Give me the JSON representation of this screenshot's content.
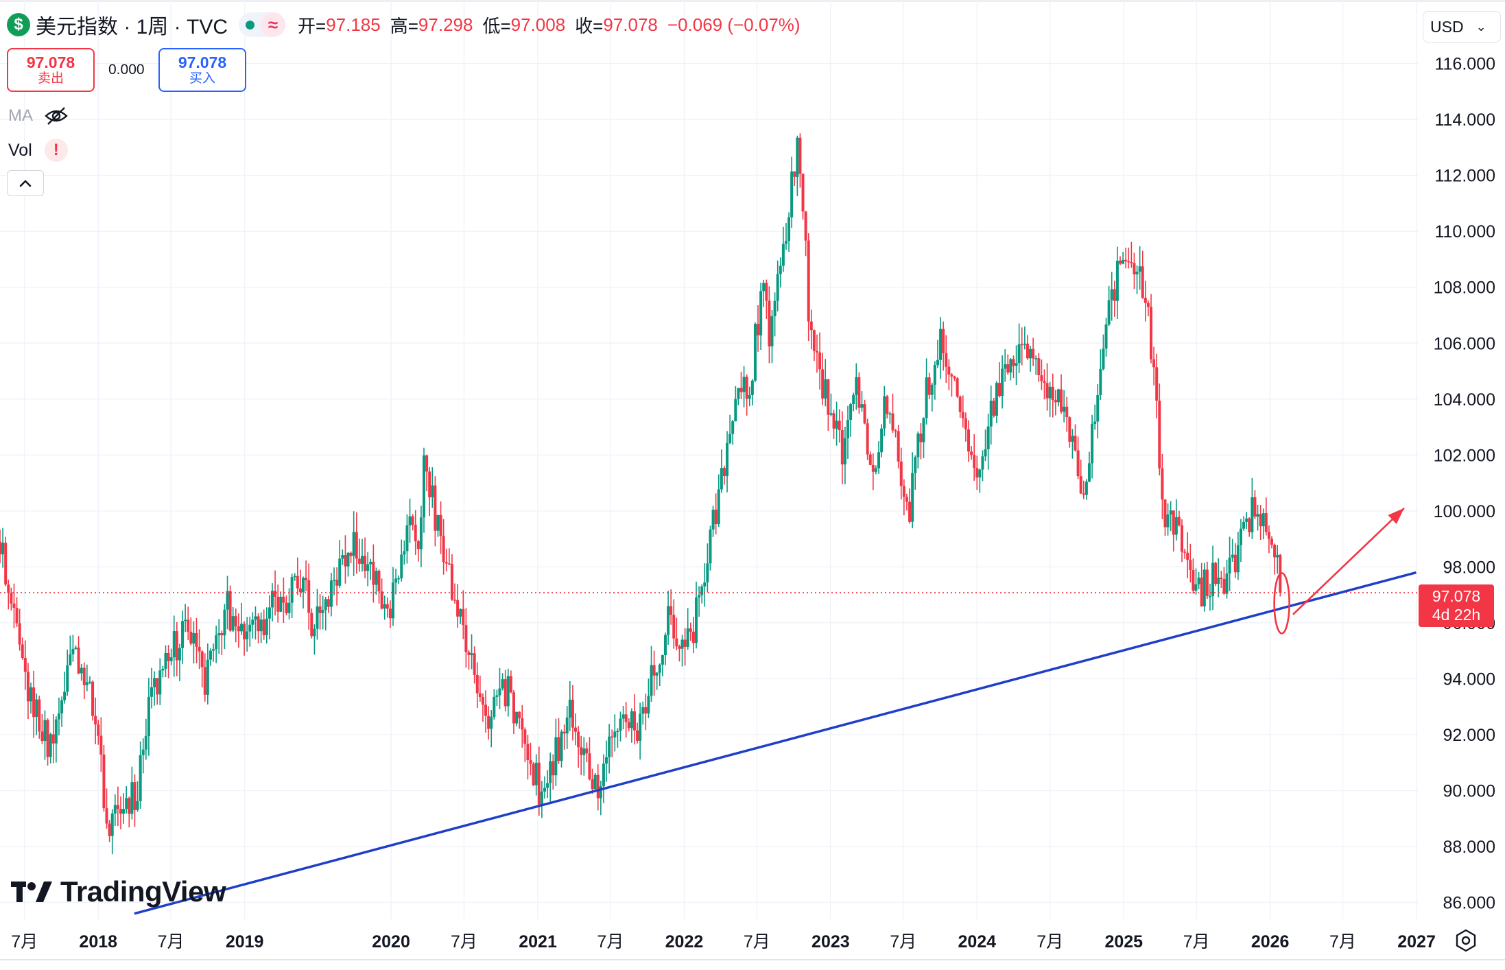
{
  "header": {
    "symbol_icon": "dollar-icon",
    "title": "美元指数 · 1周 · TVC",
    "approx_symbol": "≈",
    "ohlc": {
      "open_label": "开=",
      "open": "97.185",
      "high_label": "高=",
      "high": "97.298",
      "low_label": "低=",
      "low": "97.008",
      "close_label": "收=",
      "close": "97.078",
      "change": "−0.069 (−0.07%)"
    }
  },
  "trade": {
    "sell_price": "97.078",
    "sell_label": "卖出",
    "spread": "0.000",
    "buy_price": "97.078",
    "buy_label": "买入"
  },
  "indicators": {
    "ma_label": "MA",
    "vol_label": "Vol",
    "vol_warning": "!"
  },
  "currency": {
    "label": "USD"
  },
  "price_badge": {
    "price": "97.078",
    "countdown": "4d 22h"
  },
  "logo": {
    "text": "TradingView"
  },
  "colors": {
    "up": "#089981",
    "down": "#f23645",
    "trendline": "#1e3fc8",
    "annotation": "#f23645",
    "grid": "#f0f3fa",
    "axis_text": "#131722"
  },
  "chart_data": {
    "type": "candlestick",
    "title": "",
    "series_name": "",
    "last_price": 97.078,
    "price_line": 97.078,
    "ylim": [
      85.4,
      116.8
    ],
    "xlim": [
      "2017-05-01",
      "2027-01-06"
    ],
    "y_ticks": [
      "116.000",
      "114.000",
      "112.000",
      "110.000",
      "108.000",
      "106.000",
      "104.000",
      "102.000",
      "100.000",
      "98.000",
      "96.000",
      "94.000",
      "92.000",
      "90.000",
      "88.000",
      "86.000"
    ],
    "x_ticks": [
      {
        "label": "7月",
        "date": "2017-07-01",
        "bold": false
      },
      {
        "label": "2018",
        "date": "2018-01-01",
        "bold": true
      },
      {
        "label": "7月",
        "date": "2018-07-01",
        "bold": false
      },
      {
        "label": "2019",
        "date": "2019-01-01",
        "bold": true
      },
      {
        "label": "2020",
        "date": "2020-01-01",
        "bold": true
      },
      {
        "label": "7月",
        "date": "2020-07-01",
        "bold": false
      },
      {
        "label": "2021",
        "date": "2021-01-01",
        "bold": true
      },
      {
        "label": "7月",
        "date": "2021-07-01",
        "bold": false
      },
      {
        "label": "2022",
        "date": "2022-01-01",
        "bold": true
      },
      {
        "label": "7月",
        "date": "2022-07-01",
        "bold": false
      },
      {
        "label": "2023",
        "date": "2023-01-01",
        "bold": true
      },
      {
        "label": "7月",
        "date": "2023-07-01",
        "bold": false
      },
      {
        "label": "2024",
        "date": "2024-01-01",
        "bold": true
      },
      {
        "label": "7月",
        "date": "2024-07-01",
        "bold": false
      },
      {
        "label": "2025",
        "date": "2025-01-01",
        "bold": true
      },
      {
        "label": "7月",
        "date": "2025-07-01",
        "bold": false
      },
      {
        "label": "2026",
        "date": "2026-01-01",
        "bold": true
      },
      {
        "label": "7月",
        "date": "2026-07-01",
        "bold": false
      },
      {
        "label": "2027",
        "date": "2027-01-01",
        "bold": true
      }
    ],
    "path_key_points": [
      [
        "2017-05-01",
        98.9
      ],
      [
        "2017-06-01",
        96.8
      ],
      [
        "2017-07-01",
        94.2
      ],
      [
        "2017-09-08",
        91.4
      ],
      [
        "2017-10-25",
        95.1
      ],
      [
        "2017-12-15",
        93.5
      ],
      [
        "2018-01-26",
        88.6
      ],
      [
        "2018-02-23",
        89.6
      ],
      [
        "2018-04-06",
        89.8
      ],
      [
        "2018-05-18",
        93.8
      ],
      [
        "2018-08-17",
        96.1
      ],
      [
        "2018-09-21",
        93.8
      ],
      [
        "2018-11-16",
        96.6
      ],
      [
        "2019-01-11",
        95.3
      ],
      [
        "2019-03-01",
        96.4
      ],
      [
        "2019-05-31",
        97.6
      ],
      [
        "2019-06-21",
        95.8
      ],
      [
        "2019-09-27",
        98.9
      ],
      [
        "2019-12-27",
        96.6
      ],
      [
        "2020-02-21",
        99.8
      ],
      [
        "2020-03-13",
        98.7
      ],
      [
        "2020-03-20",
        102.5
      ],
      [
        "2020-05-01",
        99.0
      ],
      [
        "2020-06-12",
        96.7
      ],
      [
        "2020-07-24",
        94.2
      ],
      [
        "2020-09-04",
        92.5
      ],
      [
        "2020-10-16",
        93.7
      ],
      [
        "2021-01-08",
        89.9
      ],
      [
        "2021-03-26",
        92.8
      ],
      [
        "2021-05-28",
        90.0
      ],
      [
        "2021-07-02",
        92.2
      ],
      [
        "2021-09-03",
        92.2
      ],
      [
        "2021-11-19",
        96.0
      ],
      [
        "2022-01-14",
        95.2
      ],
      [
        "2022-03-04",
        98.6
      ],
      [
        "2022-05-13",
        104.5
      ],
      [
        "2022-06-10",
        104.2
      ],
      [
        "2022-07-15",
        108.0
      ],
      [
        "2022-08-05",
        106.1
      ],
      [
        "2022-09-30",
        112.1
      ],
      [
        "2022-10-14",
        113.3
      ],
      [
        "2022-11-11",
        106.3
      ],
      [
        "2022-12-30",
        103.5
      ],
      [
        "2023-02-03",
        101.9
      ],
      [
        "2023-03-03",
        104.5
      ],
      [
        "2023-04-14",
        101.5
      ],
      [
        "2023-05-26",
        104.2
      ],
      [
        "2023-07-14",
        99.9
      ],
      [
        "2023-08-25",
        104.1
      ],
      [
        "2023-10-06",
        106.1
      ],
      [
        "2023-11-24",
        103.4
      ],
      [
        "2023-12-29",
        101.3
      ],
      [
        "2024-02-16",
        104.3
      ],
      [
        "2024-04-19",
        106.1
      ],
      [
        "2024-06-07",
        104.8
      ],
      [
        "2024-07-19",
        104.3
      ],
      [
        "2024-09-27",
        100.4
      ],
      [
        "2024-11-15",
        106.7
      ],
      [
        "2025-01-10",
        109.6
      ],
      [
        "2025-02-28",
        107.6
      ],
      [
        "2025-04-11",
        100.1
      ],
      [
        "2025-05-23",
        99.2
      ],
      [
        "2025-07-04",
        97.0
      ],
      [
        "2025-08-15",
        97.8
      ],
      [
        "2025-09-19",
        97.6
      ],
      [
        "2025-11-21",
        100.2
      ],
      [
        "2026-01-09",
        99.1
      ],
      [
        "2026-01-30",
        97.1
      ]
    ],
    "trendline": [
      [
        "2018-04-01",
        85.6
      ],
      [
        "2026-12-31",
        97.8
      ]
    ],
    "annotation_arrow": [
      [
        "2026-02-27",
        96.3
      ],
      [
        "2026-12-01",
        100.1
      ]
    ],
    "annotation_ellipse_center": [
      "2026-01-30",
      96.7
    ]
  }
}
